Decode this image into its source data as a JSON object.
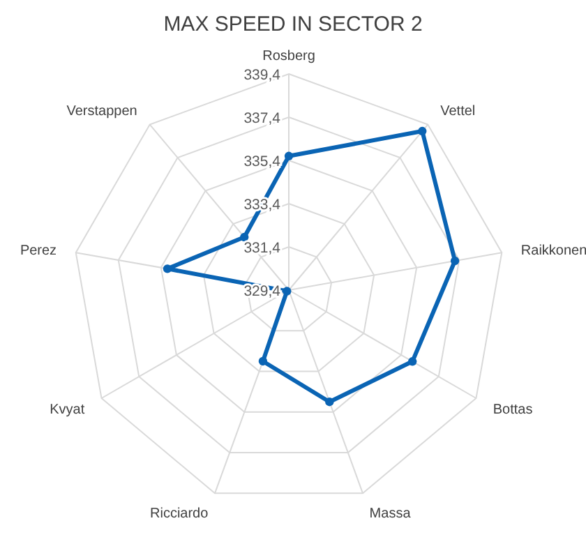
{
  "chart_data": {
    "type": "radar",
    "title": "MAX SPEED IN SECTOR 2",
    "categories": [
      "Rosberg",
      "Vettel",
      "Raikkonen",
      "Bottas",
      "Massa",
      "Ricciardo",
      "Kvyat",
      "Perez",
      "Verstappen"
    ],
    "series": [
      {
        "color": "#0a64b4",
        "values": [
          335.6,
          339.0,
          337.2,
          336.0,
          334.9,
          332.9,
          329.5,
          335.1,
          332.6
        ]
      }
    ],
    "ylim": [
      329.4,
      339.4
    ],
    "yticks": [
      {
        "value": 329.4,
        "label": "329,4"
      },
      {
        "value": 331.4,
        "label": "331,4"
      },
      {
        "value": 333.4,
        "label": "333,4"
      },
      {
        "value": 335.4,
        "label": "335,4"
      },
      {
        "value": 337.4,
        "label": "337,4"
      },
      {
        "value": 339.4,
        "label": "339,4"
      }
    ],
    "grid": true,
    "marker": "circle"
  }
}
